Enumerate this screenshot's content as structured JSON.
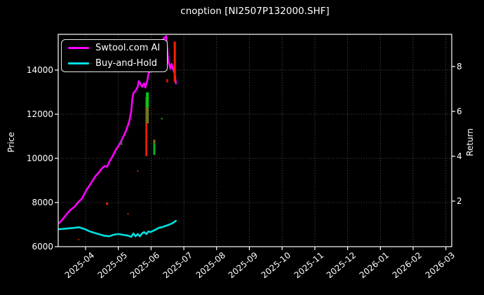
{
  "chart_data": {
    "type": "line",
    "title": "cnoption [NI2507P132000.SHF]",
    "ylabel_left": "Price",
    "ylabel_right": "Return",
    "background": "#000000",
    "grid": true,
    "legend_position": "upper-left",
    "x_ticks": [
      "2025-04",
      "2025-05",
      "2025-06",
      "2025-07",
      "2025-08",
      "2025-09",
      "2025-10",
      "2025-11",
      "2025-12",
      "2026-01",
      "2026-02",
      "2026-03"
    ],
    "y_ticks_left": [
      6000,
      8000,
      10000,
      12000,
      14000
    ],
    "y_ticks_right": [
      2,
      4,
      6,
      8
    ],
    "ylim_left": [
      6000,
      15550
    ],
    "ylim_right": [
      -0.03,
      9.44
    ],
    "series": [
      {
        "name": "Swtool.com AI",
        "color": "#ff00ff",
        "width": 2.6,
        "points": [
          [
            "2025-03-07",
            7070
          ],
          [
            "2025-03-11",
            7290
          ],
          [
            "2025-03-14",
            7480
          ],
          [
            "2025-03-17",
            7640
          ],
          [
            "2025-03-21",
            7800
          ],
          [
            "2025-03-24",
            7980
          ],
          [
            "2025-03-28",
            8170
          ],
          [
            "2025-04-02",
            8580
          ],
          [
            "2025-04-06",
            8870
          ],
          [
            "2025-04-10",
            9180
          ],
          [
            "2025-04-13",
            9340
          ],
          [
            "2025-04-17",
            9590
          ],
          [
            "2025-04-19",
            9650
          ],
          [
            "2025-04-21",
            9620
          ],
          [
            "2025-04-23",
            9840
          ],
          [
            "2025-04-26",
            10090
          ],
          [
            "2025-04-29",
            10380
          ],
          [
            "2025-05-02",
            10630
          ],
          [
            "2025-05-05",
            10910
          ],
          [
            "2025-05-08",
            11230
          ],
          [
            "2025-05-11",
            11640
          ],
          [
            "2025-05-13",
            12110
          ],
          [
            "2025-05-14",
            12680
          ],
          [
            "2025-05-15",
            12960
          ],
          [
            "2025-05-17",
            13060
          ],
          [
            "2025-05-19",
            13240
          ],
          [
            "2025-05-20",
            13500
          ],
          [
            "2025-05-21",
            13430
          ],
          [
            "2025-05-23",
            13240
          ],
          [
            "2025-05-25",
            13400
          ],
          [
            "2025-05-26",
            13210
          ],
          [
            "2025-05-28",
            13530
          ],
          [
            "2025-05-29",
            13840
          ],
          [
            "2025-05-31",
            13970
          ],
          [
            "2025-06-03",
            14320
          ],
          [
            "2025-06-06",
            14690
          ],
          [
            "2025-06-09",
            15070
          ],
          [
            "2025-06-12",
            15390
          ],
          [
            "2025-06-15",
            15540
          ],
          [
            "2025-06-16",
            14950
          ],
          [
            "2025-06-17",
            14410
          ],
          [
            "2025-06-19",
            14060
          ],
          [
            "2025-06-20",
            14280
          ],
          [
            "2025-06-21",
            14130
          ],
          [
            "2025-06-23",
            13810
          ],
          [
            "2025-06-24",
            13400
          ]
        ]
      },
      {
        "name": "Buy-and-Hold",
        "color": "#00e0e0",
        "width": 2.6,
        "points": [
          [
            "2025-03-07",
            6790
          ],
          [
            "2025-03-14",
            6820
          ],
          [
            "2025-03-21",
            6850
          ],
          [
            "2025-03-25",
            6880
          ],
          [
            "2025-03-31",
            6790
          ],
          [
            "2025-04-05",
            6690
          ],
          [
            "2025-04-11",
            6600
          ],
          [
            "2025-04-18",
            6500
          ],
          [
            "2025-04-23",
            6470
          ],
          [
            "2025-04-27",
            6540
          ],
          [
            "2025-05-01",
            6570
          ],
          [
            "2025-05-05",
            6540
          ],
          [
            "2025-05-10",
            6500
          ],
          [
            "2025-05-13",
            6440
          ],
          [
            "2025-05-15",
            6600
          ],
          [
            "2025-05-17",
            6470
          ],
          [
            "2025-05-19",
            6570
          ],
          [
            "2025-05-21",
            6470
          ],
          [
            "2025-05-23",
            6600
          ],
          [
            "2025-05-25",
            6660
          ],
          [
            "2025-05-27",
            6570
          ],
          [
            "2025-05-29",
            6690
          ],
          [
            "2025-05-31",
            6660
          ],
          [
            "2025-06-03",
            6720
          ],
          [
            "2025-06-06",
            6790
          ],
          [
            "2025-06-08",
            6850
          ],
          [
            "2025-06-11",
            6880
          ],
          [
            "2025-06-15",
            6950
          ],
          [
            "2025-06-17",
            6980
          ],
          [
            "2025-06-20",
            7040
          ],
          [
            "2025-06-22",
            7100
          ],
          [
            "2025-06-24",
            7170
          ]
        ]
      }
    ],
    "markers": {
      "bars": [
        {
          "date": "2025-05-27",
          "from": 12770,
          "to": 10100,
          "color": "#ff1e00",
          "width": 2.5
        },
        {
          "date": "2025-05-28",
          "from": 12990,
          "to": 12300,
          "color": "#00c818",
          "width": 4
        },
        {
          "date": "2025-05-28",
          "from": 12300,
          "to": 11580,
          "color": "#6e7a20",
          "width": 4
        },
        {
          "date": "2025-05-04",
          "from": 10820,
          "to": 10600,
          "color": "#00a020",
          "width": 2
        },
        {
          "date": "2025-06-04",
          "from": 10850,
          "to": 10690,
          "color": "#8a6a20",
          "width": 3
        },
        {
          "date": "2025-06-04",
          "from": 10690,
          "to": 10160,
          "color": "#00b428",
          "width": 3
        },
        {
          "date": "2025-06-23",
          "from": 15290,
          "to": 13470,
          "color": "#ff1e00",
          "width": 3
        },
        {
          "date": "2025-06-16",
          "from": 13590,
          "to": 13440,
          "color": "#c81400",
          "width": 3
        }
      ],
      "dots": [
        {
          "date": "2025-04-21",
          "price": 7950,
          "color": "#ff2a00",
          "size": 3
        },
        {
          "date": "2025-05-10",
          "price": 7480,
          "color": "#c81e00",
          "size": 2
        },
        {
          "date": "2025-05-19",
          "price": 9430,
          "color": "#b41e00",
          "size": 2
        },
        {
          "date": "2025-03-25",
          "price": 6320,
          "color": "#b41e00",
          "size": 2
        },
        {
          "date": "2025-06-11",
          "price": 11800,
          "color": "#28b428",
          "size": 2
        }
      ]
    }
  }
}
